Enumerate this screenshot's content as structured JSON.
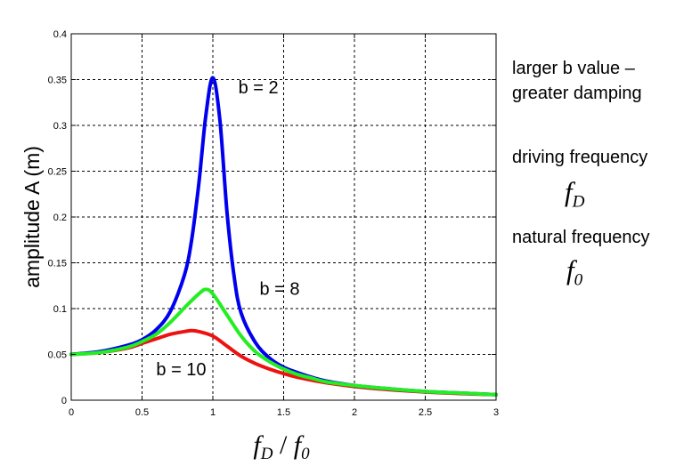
{
  "chart_data": {
    "type": "line",
    "xlabel": {
      "var": "f",
      "sub1": "D",
      "sep": " / ",
      "sub2": "0"
    },
    "ylabel": "amplitude  A  (m)",
    "xlim": [
      0,
      3
    ],
    "ylim": [
      0,
      0.4
    ],
    "xticks": [
      "0",
      "0.5",
      "1",
      "1.5",
      "2",
      "2.5",
      "3"
    ],
    "yticks": [
      "0",
      "0.05",
      "0.1",
      "0.15",
      "0.2",
      "0.25",
      "0.3",
      "0.35",
      "0.4"
    ],
    "grid": true,
    "series": [
      {
        "name": "b = 2",
        "color": "#0000ee",
        "x": [
          0,
          0.2,
          0.4,
          0.5,
          0.6,
          0.7,
          0.8,
          0.85,
          0.9,
          0.95,
          1.0,
          1.05,
          1.1,
          1.15,
          1.2,
          1.3,
          1.4,
          1.5,
          1.6,
          1.7,
          1.8,
          2.0,
          2.2,
          2.5,
          2.8,
          3.0
        ],
        "y": [
          0.05,
          0.053,
          0.06,
          0.066,
          0.077,
          0.097,
          0.137,
          0.175,
          0.235,
          0.31,
          0.352,
          0.305,
          0.205,
          0.135,
          0.095,
          0.063,
          0.046,
          0.036,
          0.03,
          0.025,
          0.021,
          0.016,
          0.013,
          0.0095,
          0.0075,
          0.006
        ]
      },
      {
        "name": "b = 8",
        "color": "#22ee22",
        "x": [
          0,
          0.2,
          0.4,
          0.5,
          0.6,
          0.7,
          0.8,
          0.9,
          0.95,
          1.0,
          1.1,
          1.2,
          1.3,
          1.4,
          1.5,
          1.6,
          1.7,
          1.8,
          2.0,
          2.2,
          2.5,
          2.8,
          3.0
        ],
        "y": [
          0.05,
          0.052,
          0.058,
          0.064,
          0.072,
          0.085,
          0.101,
          0.116,
          0.121,
          0.116,
          0.093,
          0.07,
          0.053,
          0.042,
          0.034,
          0.028,
          0.024,
          0.02,
          0.016,
          0.013,
          0.0095,
          0.0075,
          0.006
        ]
      },
      {
        "name": "b = 10",
        "color": "#ee1111",
        "x": [
          0,
          0.2,
          0.4,
          0.5,
          0.6,
          0.7,
          0.8,
          0.85,
          0.9,
          1.0,
          1.1,
          1.2,
          1.3,
          1.4,
          1.5,
          1.6,
          1.8,
          2.0,
          2.2,
          2.5,
          2.8,
          3.0
        ],
        "y": [
          0.05,
          0.052,
          0.057,
          0.062,
          0.067,
          0.072,
          0.075,
          0.076,
          0.075,
          0.07,
          0.059,
          0.048,
          0.04,
          0.034,
          0.029,
          0.025,
          0.019,
          0.015,
          0.012,
          0.009,
          0.007,
          0.006
        ]
      }
    ],
    "annotations": [
      {
        "text": "b = 2",
        "x": 1.18,
        "y": 0.335
      },
      {
        "text": "b = 8",
        "x": 1.33,
        "y": 0.115
      },
      {
        "text": "b = 10",
        "x": 0.6,
        "y": 0.027
      }
    ]
  },
  "side_text": {
    "line1": "larger b value –",
    "line2": "greater damping",
    "driving_label": "driving frequency",
    "driving_symbol": {
      "var": "f",
      "sub": "D"
    },
    "natural_label": "natural frequency",
    "natural_symbol": {
      "var": "f",
      "sub": "0"
    }
  }
}
